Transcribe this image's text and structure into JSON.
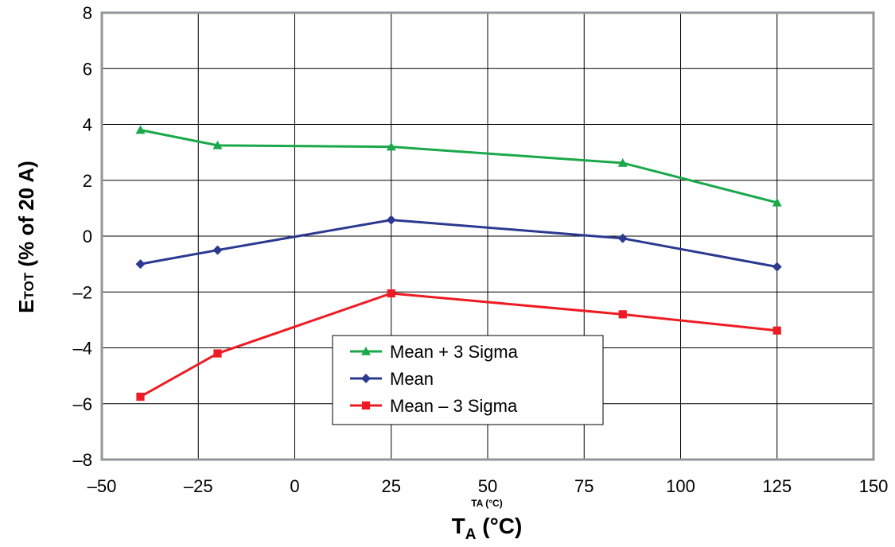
{
  "chart_data": {
    "type": "line",
    "xlabel": {
      "main": "T",
      "sub": "A",
      "unit": " (°C)"
    },
    "xlabel_small": "TA (°C)",
    "ylabel": {
      "main": "E",
      "sub": "TOT",
      "unit": " (% of 20 A)"
    },
    "xlim": [
      -50,
      150
    ],
    "ylim": [
      -8,
      8
    ],
    "xticks": [
      -50,
      -25,
      0,
      25,
      50,
      75,
      100,
      125,
      150
    ],
    "xtick_labels": [
      "–50",
      "–25",
      "0",
      "25",
      "50",
      "75",
      "100",
      "125",
      "150"
    ],
    "yticks": [
      -8,
      -6,
      -4,
      -2,
      0,
      2,
      4,
      6,
      8
    ],
    "ytick_labels": [
      "–8",
      "–6",
      "–4",
      "–2",
      "0",
      "2",
      "4",
      "6",
      "8"
    ],
    "grid": true,
    "legend_position": "center-lower",
    "x": [
      -40,
      -20,
      25,
      85,
      125
    ],
    "series": [
      {
        "name": "Mean + 3 Sigma",
        "color": "#1aa84a",
        "marker": "triangle",
        "values": [
          3.8,
          3.25,
          3.2,
          2.62,
          1.2
        ]
      },
      {
        "name": "Mean",
        "color": "#2b3990",
        "marker": "diamond",
        "values": [
          -1.0,
          -0.5,
          0.58,
          -0.08,
          -1.1
        ]
      },
      {
        "name": "Mean – 3 Sigma",
        "color": "#ed1c24",
        "marker": "square",
        "values": [
          -5.75,
          -4.2,
          -2.05,
          -2.8,
          -3.38
        ]
      }
    ]
  }
}
